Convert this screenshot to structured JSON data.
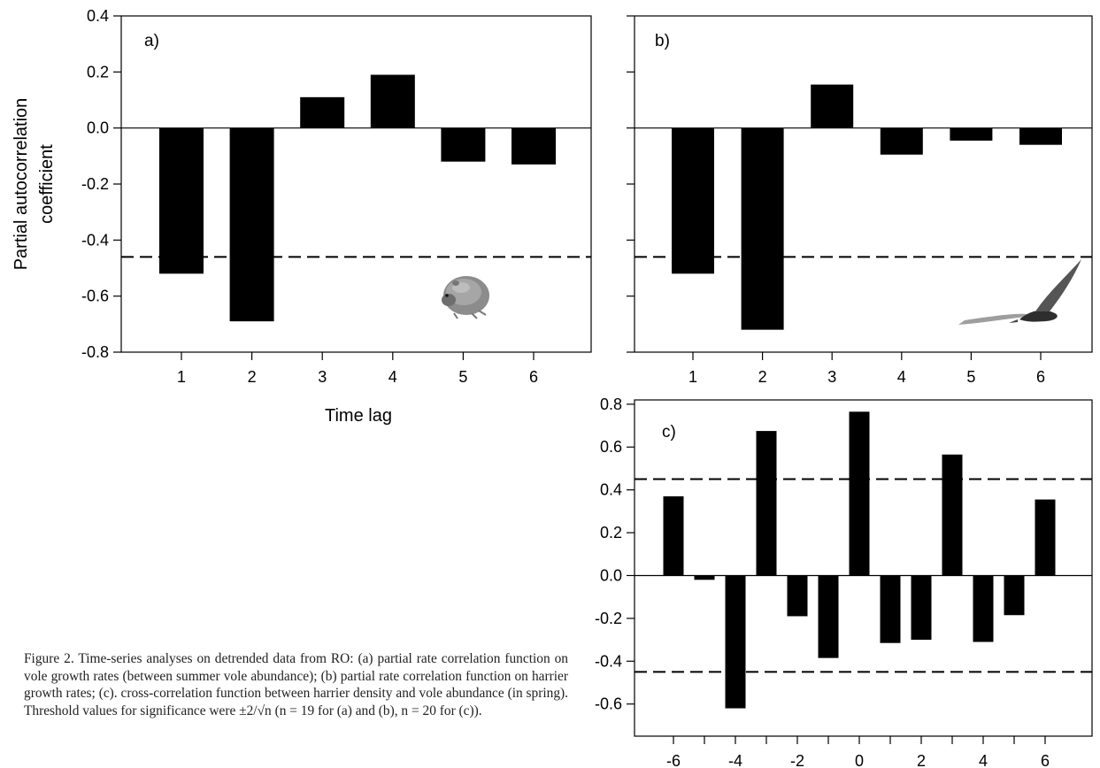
{
  "chart_data": [
    {
      "type": "bar",
      "panel_label": "a)",
      "xlabel": "Time lag",
      "ylabel_lines": [
        "Partial autocorrelation",
        "coefficient"
      ],
      "categories": [
        "1",
        "2",
        "3",
        "4",
        "5",
        "6"
      ],
      "values": [
        -0.52,
        -0.69,
        0.11,
        0.19,
        -0.12,
        -0.13
      ],
      "ylim": [
        -0.8,
        0.4
      ],
      "yticks": [
        "0.4",
        "0.2",
        "0.0",
        "-0.2",
        "-0.4",
        "-0.6",
        "-0.8"
      ],
      "threshold": -0.46,
      "image": "vole-icon"
    },
    {
      "type": "bar",
      "panel_label": "b)",
      "categories": [
        "1",
        "2",
        "3",
        "4",
        "5",
        "6"
      ],
      "values": [
        -0.52,
        -0.72,
        0.155,
        -0.095,
        -0.045,
        -0.06
      ],
      "ylim": [
        -0.8,
        0.4
      ],
      "threshold": -0.46,
      "image": "harrier-icon"
    },
    {
      "type": "bar",
      "panel_label": "c)",
      "categories": [
        "-6",
        "-5",
        "-4",
        "-3",
        "-2",
        "-1",
        "0",
        "1",
        "2",
        "3",
        "4",
        "5",
        "6"
      ],
      "xtick_labels": [
        "-6",
        "-4",
        "-2",
        "0",
        "2",
        "4",
        "6"
      ],
      "values": [
        0.37,
        -0.02,
        -0.62,
        0.675,
        -0.19,
        -0.385,
        0.765,
        -0.315,
        -0.3,
        0.565,
        -0.31,
        -0.185,
        0.355
      ],
      "ylim": [
        -0.75,
        0.82
      ],
      "yticks": [
        "0.8",
        "0.6",
        "0.4",
        "0.2",
        "0.0",
        "-0.2",
        "-0.4",
        "-0.6"
      ],
      "thresholds": [
        0.45,
        -0.45
      ]
    }
  ],
  "caption": "Figure 2. Time-series analyses on detrended data from RO: (a) partial rate correlation function on vole growth rates (between summer vole abundance); (b) partial rate correlation function on harrier growth rates; (c). cross-correlation function between harrier density and vole abundance (in spring). Threshold values for significance were ±2/√n (n = 19 for (a) and (b), n = 20 for (c))."
}
